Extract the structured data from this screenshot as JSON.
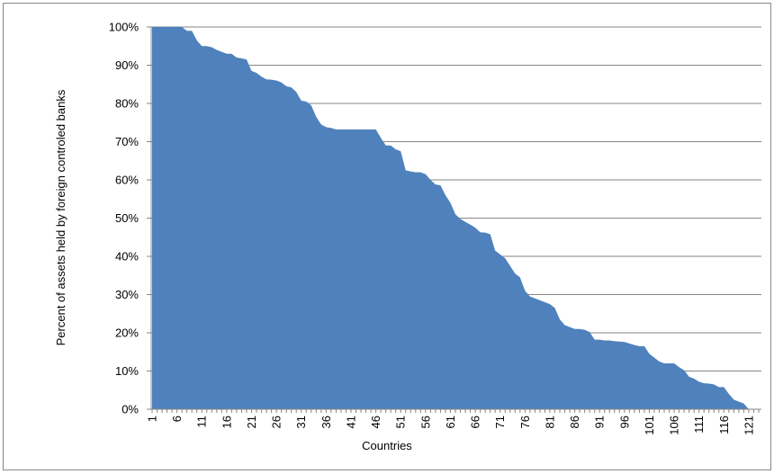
{
  "chart_data": {
    "type": "area",
    "xlabel": "Countries",
    "ylabel": "Percent of assets held by foreign controled banks",
    "color": "#4f81bd",
    "grid": true,
    "categories": [
      "1",
      null,
      null,
      null,
      null,
      "6",
      null,
      null,
      null,
      null,
      "11",
      null,
      null,
      null,
      null,
      "16",
      null,
      null,
      null,
      null,
      "21",
      null,
      null,
      null,
      null,
      "26",
      null,
      null,
      null,
      null,
      "31",
      null,
      null,
      null,
      null,
      "36",
      null,
      null,
      null,
      null,
      "41",
      null,
      null,
      null,
      null,
      "46",
      null,
      null,
      null,
      null,
      "51",
      null,
      null,
      null,
      null,
      "56",
      null,
      null,
      null,
      null,
      "61",
      null,
      null,
      null,
      null,
      "66",
      null,
      null,
      null,
      null,
      "71",
      null,
      null,
      null,
      null,
      "76",
      null,
      null,
      null,
      null,
      "81",
      null,
      null,
      null,
      null,
      "86",
      null,
      null,
      null,
      null,
      "91",
      null,
      null,
      null,
      null,
      "96",
      null,
      null,
      null,
      null,
      "101",
      null,
      null,
      null,
      null,
      "106",
      null,
      null,
      null,
      null,
      "111",
      null,
      null,
      null,
      null,
      "116",
      null,
      null,
      null,
      null,
      "121",
      null,
      null
    ],
    "values": [
      100,
      100,
      100,
      100,
      100,
      100,
      100,
      99,
      99,
      96.5,
      95,
      95,
      94.7,
      94,
      93.5,
      93,
      93,
      92,
      91.8,
      91.5,
      88.5,
      88,
      87,
      86.3,
      86.2,
      86,
      85.5,
      84.5,
      84.2,
      83,
      80.7,
      80.5,
      79.5,
      76.5,
      74.5,
      73.8,
      73.6,
      73.2,
      73.2,
      73.2,
      73.2,
      73.2,
      73.2,
      73.2,
      73.2,
      73.2,
      71,
      69,
      69,
      68,
      67.5,
      62.5,
      62.2,
      62,
      62,
      61.5,
      60,
      58.8,
      58.6,
      56,
      54,
      51,
      49.8,
      49,
      48.3,
      47.5,
      46.3,
      46.2,
      45.8,
      41.5,
      40.5,
      39.5,
      37.5,
      35.5,
      34.5,
      31,
      29.5,
      29,
      28.5,
      28,
      27.5,
      26.5,
      23.5,
      22,
      21.5,
      21,
      21,
      20.8,
      20.2,
      18.2,
      18.2,
      18,
      18,
      17.8,
      17.7,
      17.6,
      17.2,
      16.8,
      16.5,
      16.5,
      14.5,
      13.5,
      12.5,
      12,
      12,
      12,
      11,
      10.2,
      8.5,
      8,
      7.2,
      6.8,
      6.7,
      6.5,
      5.8,
      5.8,
      4,
      2.5,
      2,
      1.5,
      0,
      0,
      0
    ],
    "ylim": [
      0,
      100
    ],
    "yticks": [
      {
        "value": 0,
        "label": "0%"
      },
      {
        "value": 10,
        "label": "10%"
      },
      {
        "value": 20,
        "label": "20%"
      },
      {
        "value": 30,
        "label": "30%"
      },
      {
        "value": 40,
        "label": "40%"
      },
      {
        "value": 50,
        "label": "50%"
      },
      {
        "value": 60,
        "label": "60%"
      },
      {
        "value": 70,
        "label": "70%"
      },
      {
        "value": 80,
        "label": "80%"
      },
      {
        "value": 90,
        "label": "90%"
      },
      {
        "value": 100,
        "label": "100%"
      }
    ]
  }
}
